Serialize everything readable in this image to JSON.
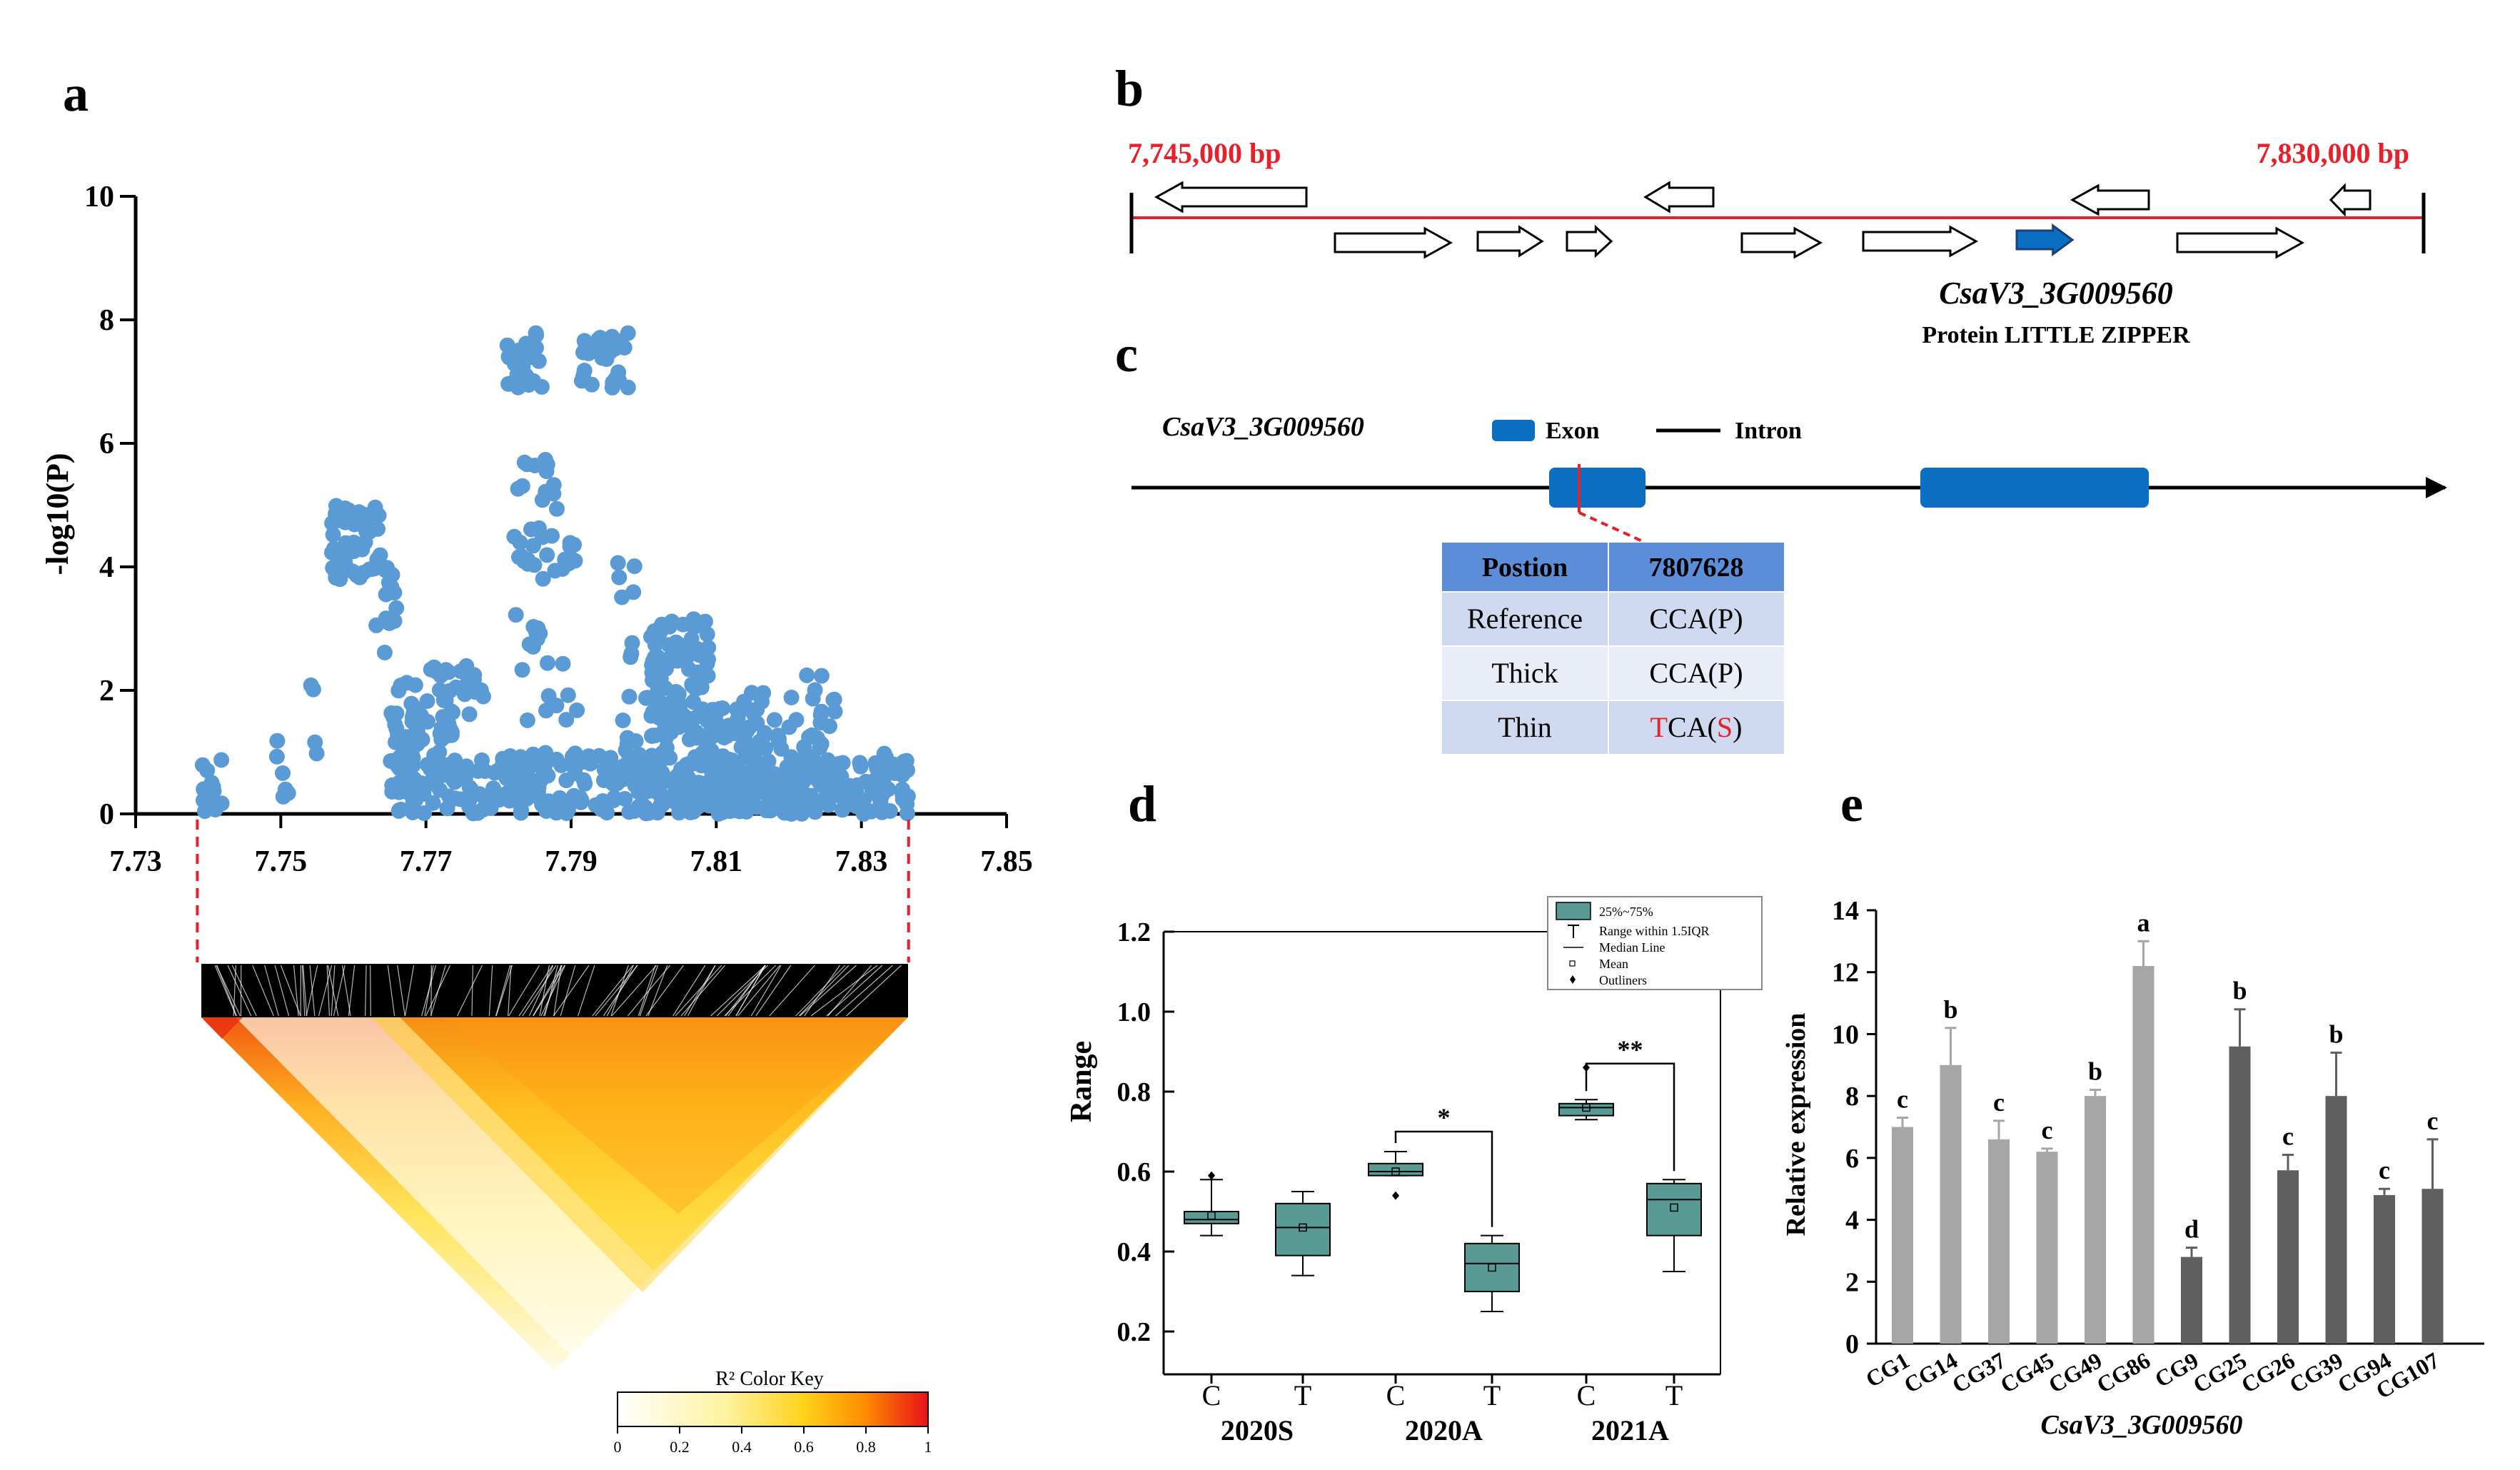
{
  "panels": {
    "a": "a",
    "b": "b",
    "c": "c",
    "d": "d",
    "e": "e"
  },
  "colors": {
    "scatter": "#5b9bd5",
    "red": "#e8202a",
    "exon": "#0a6fc2",
    "box": "#5a9a94",
    "bar_light": "#a6a6a6",
    "bar_dark": "#5f5f5f",
    "table_head": "#5b8dd9",
    "table_row_a": "#cfd9ef",
    "table_row_b": "#e8edf7"
  },
  "chart_data": [
    {
      "panel": "a",
      "type": "scatter",
      "ylabel": "-log10(P)",
      "ylim": [
        0,
        10
      ],
      "yticks": [
        "0",
        "2",
        "4",
        "6",
        "8",
        "10"
      ],
      "xlim": [
        7.73,
        7.85
      ],
      "xticks": [
        "7.73",
        "7.75",
        "7.77",
        "7.79",
        "7.81",
        "7.83",
        "7.85"
      ],
      "highlight_range": [
        7.7385,
        7.8365
      ],
      "clusters": [
        {
          "x": [
            7.739,
            7.742
          ],
          "y": [
            0,
            0.9
          ],
          "n": 14
        },
        {
          "x": [
            7.749,
            7.752
          ],
          "y": [
            0,
            1.2
          ],
          "n": 6
        },
        {
          "x": [
            7.754,
            7.756
          ],
          "y": [
            0.6,
            2.2
          ],
          "n": 4
        },
        {
          "x": [
            7.757,
            7.764
          ],
          "y": [
            3.8,
            5.0
          ],
          "n": 60
        },
        {
          "x": [
            7.763,
            7.766
          ],
          "y": [
            2.5,
            4.0
          ],
          "n": 14
        },
        {
          "x": [
            7.765,
            7.769
          ],
          "y": [
            0,
            2.2
          ],
          "n": 45
        },
        {
          "x": [
            7.768,
            7.777
          ],
          "y": [
            1.2,
            2.4
          ],
          "n": 45
        },
        {
          "x": [
            7.768,
            7.781
          ],
          "y": [
            0,
            1.0
          ],
          "n": 60
        },
        {
          "x": [
            7.776,
            7.778
          ],
          "y": [
            1.9,
            2.2
          ],
          "n": 5
        },
        {
          "x": [
            7.781,
            7.786
          ],
          "y": [
            6.8,
            7.8
          ],
          "n": 28
        },
        {
          "x": [
            7.791,
            7.798
          ],
          "y": [
            6.9,
            7.8
          ],
          "n": 28
        },
        {
          "x": [
            7.782,
            7.789
          ],
          "y": [
            3.8,
            5.8
          ],
          "n": 30
        },
        {
          "x": [
            7.782,
            7.786
          ],
          "y": [
            2.6,
            3.4
          ],
          "n": 8
        },
        {
          "x": [
            7.783,
            7.791
          ],
          "y": [
            1.5,
            2.5
          ],
          "n": 10
        },
        {
          "x": [
            7.781,
            7.801
          ],
          "y": [
            0,
            1.0
          ],
          "n": 110
        },
        {
          "x": [
            7.786,
            7.791
          ],
          "y": [
            4.0,
            4.5
          ],
          "n": 8
        },
        {
          "x": [
            7.795,
            7.799
          ],
          "y": [
            3.4,
            4.2
          ],
          "n": 5
        },
        {
          "x": [
            7.797,
            7.804
          ],
          "y": [
            0.8,
            2.9
          ],
          "n": 30
        },
        {
          "x": [
            7.801,
            7.809
          ],
          "y": [
            1.2,
            3.2
          ],
          "n": 90
        },
        {
          "x": [
            7.801,
            7.811
          ],
          "y": [
            0,
            1.0
          ],
          "n": 80
        },
        {
          "x": [
            7.809,
            7.817
          ],
          "y": [
            0.6,
            2.0
          ],
          "n": 60
        },
        {
          "x": [
            7.811,
            7.821
          ],
          "y": [
            0,
            0.6
          ],
          "n": 70
        },
        {
          "x": [
            7.817,
            7.822
          ],
          "y": [
            0.6,
            1.9
          ],
          "n": 15
        },
        {
          "x": [
            7.822,
            7.827
          ],
          "y": [
            0.8,
            2.3
          ],
          "n": 20
        },
        {
          "x": [
            7.821,
            7.8365
          ],
          "y": [
            0,
            1.0
          ],
          "n": 90
        }
      ],
      "ld_key": {
        "title": "R² Color Key",
        "ticks": [
          "0",
          "0.2",
          "0.4",
          "0.6",
          "0.8",
          "1"
        ]
      }
    },
    {
      "panel": "d",
      "type": "box",
      "ylabel": "Range",
      "ylim": [
        0.2,
        1.2
      ],
      "yticks": [
        "0.2",
        "0.4",
        "0.6",
        "0.8",
        "1.0",
        "1.2"
      ],
      "groups": [
        "2020S",
        "2020A",
        "2021A"
      ],
      "boxes": [
        {
          "label": "C",
          "group": "2020S",
          "q1": 0.47,
          "q3": 0.5,
          "median": 0.48,
          "mean": 0.49,
          "whisker": [
            0.44,
            0.58
          ],
          "outliers": [
            0.59
          ]
        },
        {
          "label": "T",
          "group": "2020S",
          "q1": 0.39,
          "q3": 0.52,
          "median": 0.46,
          "mean": 0.46,
          "whisker": [
            0.34,
            0.55
          ],
          "outliers": []
        },
        {
          "label": "C",
          "group": "2020A",
          "q1": 0.59,
          "q3": 0.62,
          "median": 0.6,
          "mean": 0.6,
          "whisker": [
            0.59,
            0.65
          ],
          "outliers": [
            0.54
          ]
        },
        {
          "label": "T",
          "group": "2020A",
          "q1": 0.3,
          "q3": 0.42,
          "median": 0.37,
          "mean": 0.36,
          "whisker": [
            0.25,
            0.44
          ],
          "outliers": []
        },
        {
          "label": "C",
          "group": "2021A",
          "q1": 0.74,
          "q3": 0.77,
          "median": 0.76,
          "mean": 0.76,
          "whisker": [
            0.73,
            0.78
          ],
          "outliers": [
            0.86
          ]
        },
        {
          "label": "T",
          "group": "2021A",
          "q1": 0.44,
          "q3": 0.57,
          "median": 0.53,
          "mean": 0.51,
          "whisker": [
            0.35,
            0.58
          ],
          "outliers": []
        }
      ],
      "significance": [
        {
          "between": [
            3,
            4
          ],
          "label": "*"
        },
        {
          "between": [
            5,
            6
          ],
          "label": "**"
        }
      ],
      "legend": [
        "25%~75%",
        "Range within 1.5IQR",
        "Median Line",
        "Mean",
        "Outliners"
      ]
    },
    {
      "panel": "e",
      "type": "bar",
      "xlabel": "CsaV3_3G009560",
      "ylabel": "Relative expression",
      "ylim": [
        0,
        14
      ],
      "yticks": [
        "0",
        "2",
        "4",
        "6",
        "8",
        "10",
        "12",
        "14"
      ],
      "categories": [
        "CG1",
        "CG14",
        "CG37",
        "CG45",
        "CG49",
        "CG86",
        "CG9",
        "CG25",
        "CG26",
        "CG39",
        "CG94",
        "CG107"
      ],
      "values": [
        7.0,
        9.0,
        6.6,
        6.2,
        8.0,
        12.2,
        2.8,
        9.6,
        5.6,
        8.0,
        4.8,
        5.0
      ],
      "errors": [
        0.3,
        1.2,
        0.6,
        0.1,
        0.2,
        0.8,
        0.3,
        1.2,
        0.5,
        1.4,
        0.2,
        1.6
      ],
      "letters": [
        "c",
        "b",
        "c",
        "c",
        "b",
        "a",
        "d",
        "b",
        "c",
        "b",
        "c",
        "c"
      ],
      "shade": [
        "light",
        "light",
        "light",
        "light",
        "light",
        "light",
        "dark",
        "dark",
        "dark",
        "dark",
        "dark",
        "dark"
      ]
    }
  ],
  "gene_map": {
    "left_pos": "7,745,000 bp",
    "right_pos": "7,830,000 bp",
    "gene": "CsaV3_3G009560",
    "protein": "Protein LITTLE ZIPPER"
  },
  "structure": {
    "gene": "CsaV3_3G009560",
    "exon": "Exon",
    "intron": "Intron",
    "table": {
      "header": [
        "Postion",
        "7807628"
      ],
      "rows": [
        {
          "name": "Reference",
          "codon": "CCA",
          "aa": "P",
          "mutant": false
        },
        {
          "name": "Thick",
          "codon": "CCA",
          "aa": "P",
          "mutant": false
        },
        {
          "name": "Thin",
          "codon": "TCA",
          "aa": "S",
          "mutant": true
        }
      ]
    }
  }
}
